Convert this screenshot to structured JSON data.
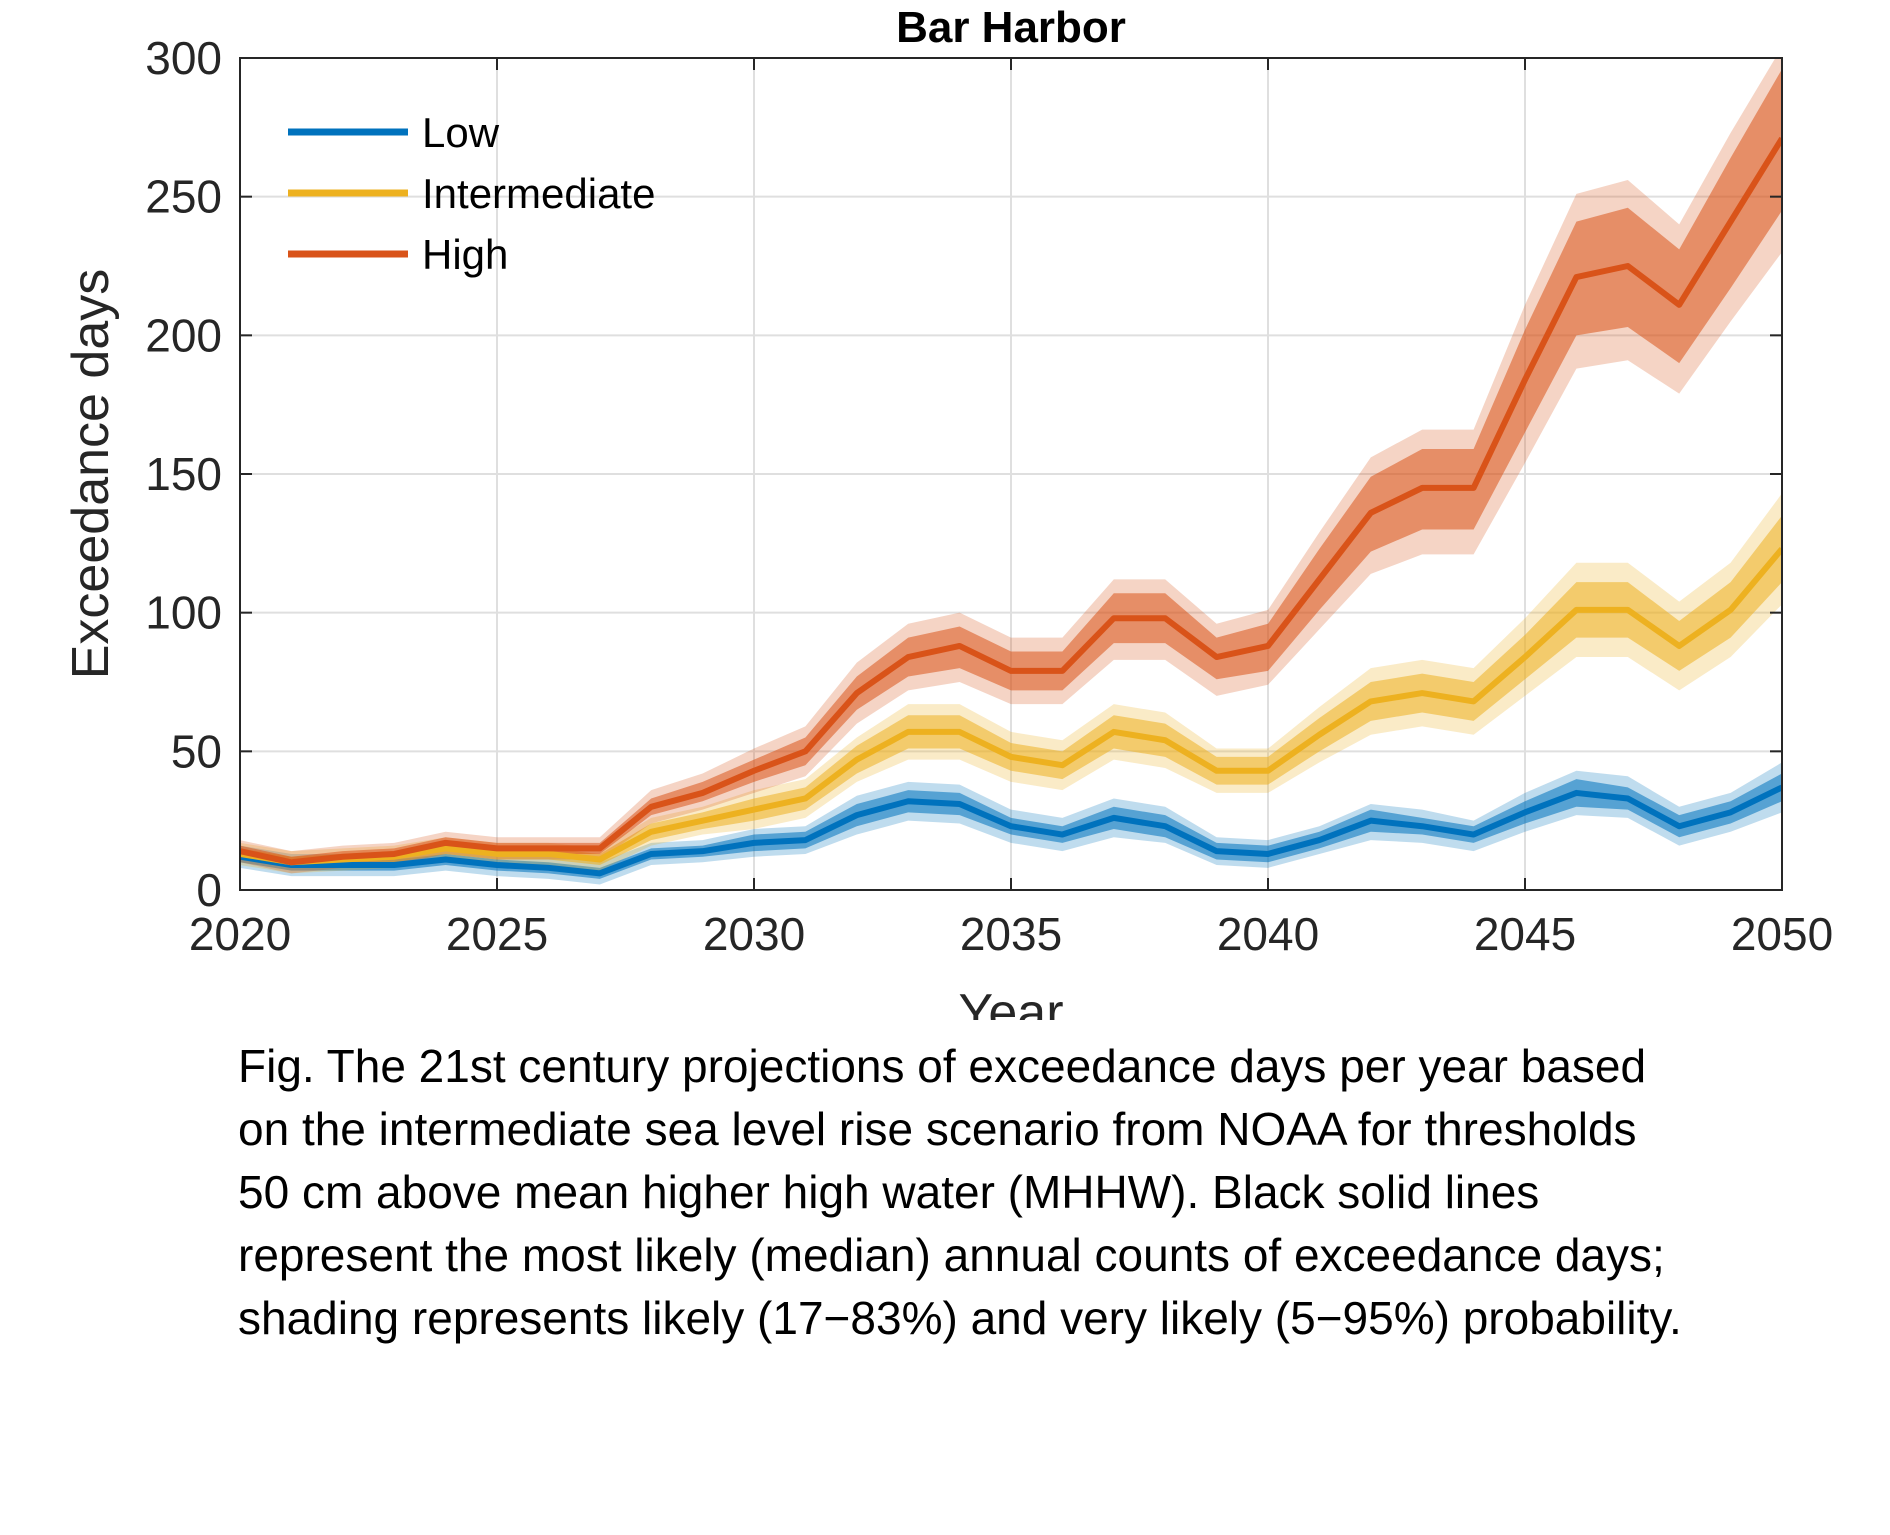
{
  "chart_data": {
    "type": "line",
    "title": "Bar Harbor",
    "xlabel": "Year",
    "ylabel": "Exceedance days",
    "xlim": [
      2020,
      2050
    ],
    "ylim": [
      0,
      300
    ],
    "xticks": [
      2020,
      2025,
      2030,
      2035,
      2040,
      2045,
      2050
    ],
    "yticks": [
      0,
      50,
      100,
      150,
      200,
      250,
      300
    ],
    "grid": true,
    "legend_position": "top-left",
    "x": [
      2020,
      2021,
      2022,
      2023,
      2024,
      2025,
      2026,
      2027,
      2028,
      2029,
      2030,
      2031,
      2032,
      2033,
      2034,
      2035,
      2036,
      2037,
      2038,
      2039,
      2040,
      2041,
      2042,
      2043,
      2044,
      2045,
      2046,
      2047,
      2048,
      2049,
      2050
    ],
    "series": [
      {
        "name": "Low",
        "color": "#0072BD",
        "median": [
          12,
          9,
          9,
          9,
          11,
          9,
          8,
          6,
          13,
          14,
          17,
          18,
          27,
          32,
          31,
          23,
          20,
          26,
          23,
          14,
          13,
          18,
          25,
          23,
          20,
          28,
          35,
          33,
          23,
          28,
          37
        ],
        "likely_lower": [
          10,
          7,
          7,
          7,
          9,
          7,
          6,
          4,
          11,
          12,
          14,
          15,
          23,
          28,
          27,
          20,
          17,
          22,
          19,
          11,
          10,
          15,
          21,
          20,
          17,
          24,
          30,
          29,
          19,
          24,
          32
        ],
        "likely_upper": [
          14,
          11,
          11,
          11,
          13,
          11,
          10,
          8,
          15,
          16,
          20,
          21,
          31,
          36,
          35,
          26,
          23,
          30,
          27,
          17,
          16,
          21,
          29,
          26,
          23,
          32,
          40,
          37,
          27,
          32,
          42
        ],
        "very_likely_lower": [
          8,
          5,
          5,
          5,
          7,
          5,
          4,
          2,
          9,
          10,
          12,
          13,
          20,
          25,
          24,
          17,
          14,
          19,
          17,
          9,
          8,
          13,
          18,
          17,
          14,
          21,
          27,
          26,
          16,
          21,
          28
        ],
        "very_likely_upper": [
          16,
          13,
          13,
          13,
          15,
          13,
          12,
          10,
          17,
          18,
          22,
          23,
          34,
          39,
          38,
          29,
          26,
          33,
          30,
          19,
          18,
          23,
          31,
          29,
          25,
          35,
          43,
          41,
          30,
          35,
          46
        ]
      },
      {
        "name": "Intermediate",
        "color": "#EDB120",
        "median": [
          13,
          10,
          11,
          12,
          15,
          13,
          13,
          11,
          21,
          25,
          29,
          33,
          47,
          57,
          57,
          48,
          45,
          57,
          54,
          43,
          43,
          56,
          68,
          71,
          68,
          84,
          101,
          101,
          88,
          101,
          123
        ],
        "likely_lower": [
          11,
          8,
          9,
          10,
          13,
          11,
          11,
          9,
          18,
          22,
          25,
          29,
          42,
          51,
          51,
          43,
          40,
          51,
          48,
          38,
          38,
          50,
          61,
          64,
          61,
          76,
          91,
          91,
          79,
          91,
          111
        ],
        "likely_upper": [
          15,
          12,
          13,
          14,
          17,
          15,
          15,
          13,
          24,
          28,
          33,
          37,
          52,
          63,
          63,
          53,
          50,
          63,
          60,
          48,
          48,
          62,
          75,
          78,
          75,
          92,
          111,
          111,
          97,
          111,
          135
        ],
        "very_likely_lower": [
          9,
          6,
          7,
          8,
          11,
          9,
          9,
          7,
          16,
          20,
          22,
          26,
          39,
          47,
          47,
          39,
          36,
          47,
          44,
          35,
          35,
          46,
          56,
          59,
          56,
          70,
          84,
          84,
          72,
          84,
          103
        ],
        "very_likely_upper": [
          17,
          14,
          15,
          16,
          19,
          17,
          17,
          15,
          26,
          30,
          36,
          40,
          55,
          67,
          67,
          57,
          54,
          67,
          64,
          51,
          51,
          66,
          80,
          83,
          80,
          98,
          118,
          118,
          104,
          118,
          143
        ]
      },
      {
        "name": "High",
        "color": "#D95319",
        "median": [
          14,
          10,
          12,
          13,
          17,
          15,
          15,
          15,
          30,
          35,
          43,
          50,
          71,
          84,
          88,
          79,
          79,
          98,
          98,
          84,
          88,
          112,
          136,
          145,
          145,
          184,
          221,
          225,
          211,
          241,
          271
        ],
        "likely_lower": [
          12,
          8,
          10,
          11,
          15,
          13,
          13,
          13,
          27,
          32,
          39,
          45,
          65,
          77,
          80,
          72,
          72,
          89,
          89,
          76,
          79,
          101,
          122,
          130,
          130,
          165,
          200,
          203,
          190,
          217,
          245
        ],
        "likely_upper": [
          16,
          12,
          14,
          15,
          19,
          17,
          17,
          17,
          33,
          39,
          47,
          55,
          77,
          91,
          95,
          86,
          86,
          107,
          107,
          91,
          96,
          123,
          149,
          159,
          159,
          202,
          241,
          246,
          231,
          264,
          296
        ],
        "very_likely_lower": [
          10,
          6,
          8,
          9,
          13,
          11,
          11,
          11,
          24,
          29,
          35,
          41,
          60,
          72,
          75,
          67,
          67,
          83,
          83,
          70,
          74,
          94,
          114,
          121,
          121,
          154,
          188,
          191,
          179,
          205,
          230
        ],
        "very_likely_upper": [
          18,
          14,
          16,
          17,
          21,
          19,
          19,
          19,
          36,
          42,
          51,
          59,
          82,
          96,
          100,
          91,
          91,
          112,
          112,
          96,
          101,
          129,
          156,
          166,
          166,
          211,
          251,
          256,
          240,
          273,
          304
        ]
      }
    ]
  },
  "caption": "Fig. The 21st century projections of exceedance days per year based\non the intermediate sea level rise scenario from NOAA for thresholds\n50 cm above mean higher high water (MHHW). Black solid lines\nrepresent the most likely (median) annual counts of exceedance days;\nshading represents likely (17−83%) and very likely (5−95%) probability."
}
